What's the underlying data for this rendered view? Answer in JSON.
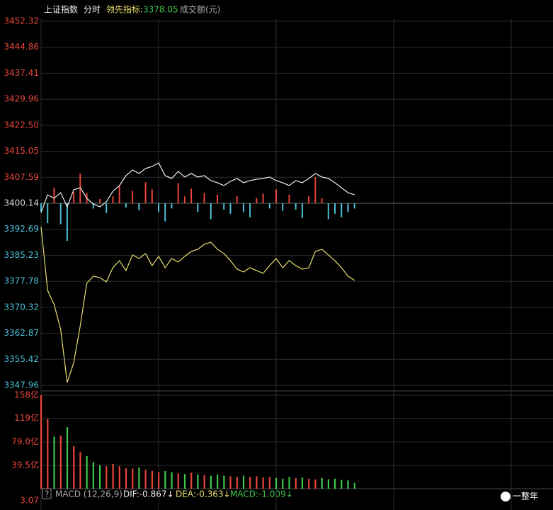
{
  "header": {
    "title": "上证指数",
    "mode": "分时",
    "indicator_label": "领先指标:",
    "indicator_value": 3378.05,
    "volume_label": "成交额(元)"
  },
  "chart_data": [
    {
      "type": "line",
      "xlim": [
        0,
        72
      ],
      "xticks": [
        0,
        18,
        36,
        54,
        72
      ],
      "ylim": [
        3347.96,
        3452.32
      ],
      "yticks": [
        3452.32,
        3444.86,
        3437.41,
        3429.96,
        {
          "value": 3422.5,
          "label": "3422.50"
        },
        3415.05,
        3407.59,
        3400.14,
        3392.69,
        3385.23,
        3377.78,
        3370.32,
        3362.87,
        3355.42,
        3347.96
      ],
      "baseline": 3400.14,
      "grid": true,
      "up_color": "#e8453c",
      "down_color": "#4cc0d8",
      "flat_color": "#dddddd",
      "series": [
        {
          "color": "#f0f0f0",
          "values": [
            3397.51,
            3402.58,
            3401.57,
            3403.19,
            3399.13,
            3404.01,
            3404.61,
            3401.57,
            3399.95,
            3399.13,
            3400.55,
            3403.6,
            3405.22,
            3408.07,
            3409.69,
            3408.67,
            3410.1,
            3410.7,
            3411.72,
            3408.07,
            3407.25,
            3409.28,
            3407.66,
            3408.67,
            3407.66,
            3408.07,
            3406.64,
            3406.04,
            3405.22,
            3406.44,
            3407.25,
            3406.04,
            3406.64,
            3407.05,
            3407.25,
            3407.66,
            3406.64,
            3406.04,
            3405.22,
            3406.64,
            3406.04,
            3407.25,
            3408.67,
            3407.66,
            3407.25,
            3406.04,
            3404.61,
            3403.19,
            3402.58
          ]
        },
        {
          "color": "#e8e070",
          "values": [
            3393.45,
            3375.18,
            3371.12,
            3364.01,
            3348.79,
            3354.47,
            3365.03,
            3377.21,
            3379.24,
            3378.83,
            3377.62,
            3381.68,
            3383.71,
            3380.86,
            3385.33,
            3384.31,
            3385.74,
            3382.28,
            3384.92,
            3381.68,
            3384.31,
            3383.3,
            3384.92,
            3386.34,
            3386.95,
            3388.37,
            3388.98,
            3386.95,
            3385.74,
            3383.71,
            3381.27,
            3380.46,
            3381.68,
            3380.86,
            3380.05,
            3382.28,
            3384.31,
            3381.68,
            3383.71,
            3382.28,
            3381.27,
            3381.68,
            3386.34,
            3386.95,
            3385.33,
            3383.71,
            3381.68,
            3379.24,
            3378.05
          ]
        }
      ],
      "bars": [
        -2.5,
        -5.7,
        4.5,
        -6.0,
        -10.8,
        3.2,
        8.5,
        3.0,
        -1.5,
        1.2,
        -2.8,
        2.0,
        5.0,
        -1.2,
        3.5,
        -2.0,
        6.0,
        4.0,
        -2.5,
        -5.2,
        -1.5,
        5.8,
        2.0,
        4.2,
        -2.5,
        3.0,
        -4.5,
        2.5,
        -1.8,
        -3.0,
        2.0,
        -2.5,
        -4.0,
        1.5,
        2.8,
        -1.5,
        4.0,
        -2.2,
        2.5,
        -1.8,
        -4.2,
        2.0,
        7.5,
        1.5,
        -4.5,
        -3.0,
        -4.0,
        -2.5,
        -1.5
      ]
    },
    {
      "type": "bar",
      "xlim": [
        0,
        72
      ],
      "ylim": [
        0,
        158
      ],
      "yticks": [
        {
          "value": 158,
          "label": "158亿"
        },
        {
          "value": 119,
          "label": "119亿"
        },
        {
          "value": 79.0,
          "label": "79.0亿"
        },
        {
          "value": 39.5,
          "label": "39.5亿"
        }
      ],
      "grid": true,
      "up_color": "#e8453c",
      "down_color": "#3ec84a",
      "values": [
        158,
        118,
        88,
        90,
        104,
        72,
        62,
        55,
        45,
        40,
        38,
        42,
        38,
        35,
        34,
        36,
        32,
        30,
        28,
        30,
        28,
        26,
        25,
        27,
        24,
        23,
        22,
        24,
        22,
        21,
        20,
        22,
        20,
        21,
        19,
        20,
        18,
        17,
        20,
        18,
        19,
        17,
        16,
        18,
        16,
        17,
        15,
        14,
        10
      ]
    }
  ],
  "macd": {
    "help": "?",
    "name": "MACD (12,26,9)",
    "dif": "DIF:-0.867↓",
    "dea": "DEA:-0.363↓",
    "macd": "MACD:-1.009↓",
    "ytick": 3.07
  },
  "watermark": "一整年"
}
